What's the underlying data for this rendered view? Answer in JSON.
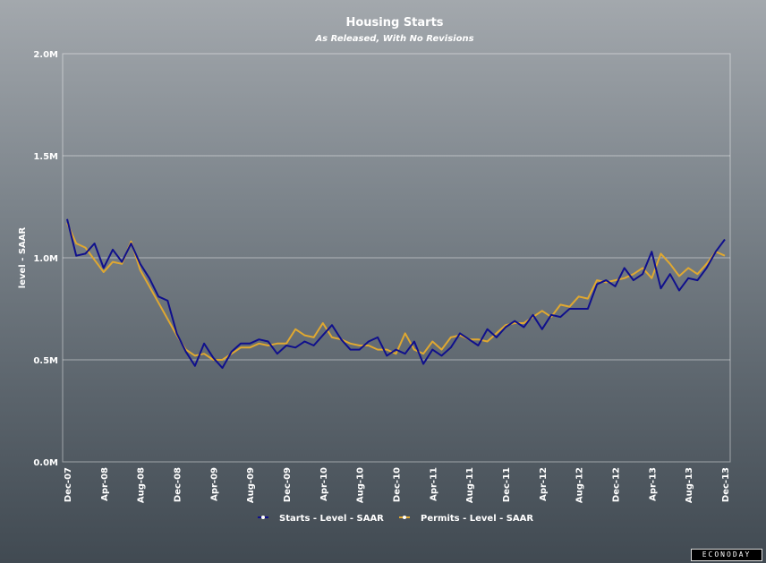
{
  "chart_data": {
    "type": "line",
    "title": "Housing Starts",
    "subtitle": "As Released, With No Revisions",
    "ylabel": "level - SAAR",
    "ylim": [
      0,
      2.0
    ],
    "yticks": [
      {
        "value": 0.0,
        "label": "0.0M"
      },
      {
        "value": 0.5,
        "label": "0.5M"
      },
      {
        "value": 1.0,
        "label": "1.0M"
      },
      {
        "value": 1.5,
        "label": "1.5M"
      },
      {
        "value": 2.0,
        "label": "2.0M"
      }
    ],
    "xticks": [
      {
        "index": 0,
        "label": "Dec-07"
      },
      {
        "index": 4,
        "label": "Apr-08"
      },
      {
        "index": 8,
        "label": "Aug-08"
      },
      {
        "index": 12,
        "label": "Dec-08"
      },
      {
        "index": 16,
        "label": "Apr-09"
      },
      {
        "index": 20,
        "label": "Aug-09"
      },
      {
        "index": 24,
        "label": "Dec-09"
      },
      {
        "index": 28,
        "label": "Apr-10"
      },
      {
        "index": 32,
        "label": "Aug-10"
      },
      {
        "index": 36,
        "label": "Dec-10"
      },
      {
        "index": 40,
        "label": "Apr-11"
      },
      {
        "index": 44,
        "label": "Aug-11"
      },
      {
        "index": 48,
        "label": "Dec-11"
      },
      {
        "index": 52,
        "label": "Apr-12"
      },
      {
        "index": 56,
        "label": "Aug-12"
      },
      {
        "index": 60,
        "label": "Dec-12"
      },
      {
        "index": 64,
        "label": "Apr-13"
      },
      {
        "index": 68,
        "label": "Aug-13"
      },
      {
        "index": 72,
        "label": "Dec-13"
      }
    ],
    "grid": true,
    "legend_position": "bottom",
    "series": [
      {
        "name": "Starts - Level - SAAR",
        "color": "#10108c",
        "values": [
          1.19,
          1.01,
          1.02,
          1.07,
          0.95,
          1.04,
          0.98,
          1.07,
          0.97,
          0.9,
          0.81,
          0.79,
          0.63,
          0.54,
          0.47,
          0.58,
          0.51,
          0.46,
          0.54,
          0.58,
          0.58,
          0.6,
          0.59,
          0.53,
          0.57,
          0.56,
          0.59,
          0.57,
          0.62,
          0.67,
          0.6,
          0.55,
          0.55,
          0.59,
          0.61,
          0.52,
          0.55,
          0.53,
          0.59,
          0.48,
          0.55,
          0.52,
          0.56,
          0.63,
          0.6,
          0.57,
          0.65,
          0.61,
          0.66,
          0.69,
          0.66,
          0.72,
          0.65,
          0.72,
          0.71,
          0.75,
          0.75,
          0.75,
          0.87,
          0.89,
          0.86,
          0.95,
          0.89,
          0.92,
          1.03,
          0.85,
          0.92,
          0.84,
          0.9,
          0.89,
          0.95,
          1.03,
          1.09
        ]
      },
      {
        "name": "Permits - Level - SAAR",
        "color": "#e0a830",
        "values": [
          1.17,
          1.07,
          1.05,
          0.99,
          0.93,
          0.98,
          0.97,
          1.08,
          0.94,
          0.86,
          0.78,
          0.7,
          0.62,
          0.55,
          0.52,
          0.53,
          0.5,
          0.5,
          0.53,
          0.56,
          0.56,
          0.58,
          0.57,
          0.58,
          0.58,
          0.65,
          0.62,
          0.61,
          0.68,
          0.61,
          0.6,
          0.58,
          0.57,
          0.57,
          0.55,
          0.55,
          0.53,
          0.63,
          0.55,
          0.53,
          0.59,
          0.55,
          0.61,
          0.62,
          0.6,
          0.6,
          0.59,
          0.63,
          0.67,
          0.68,
          0.68,
          0.71,
          0.74,
          0.71,
          0.77,
          0.76,
          0.81,
          0.8,
          0.89,
          0.88,
          0.89,
          0.9,
          0.92,
          0.95,
          0.9,
          1.02,
          0.97,
          0.91,
          0.95,
          0.92,
          0.97,
          1.03,
          1.01
        ]
      }
    ]
  },
  "watermark": "ECONODAY"
}
